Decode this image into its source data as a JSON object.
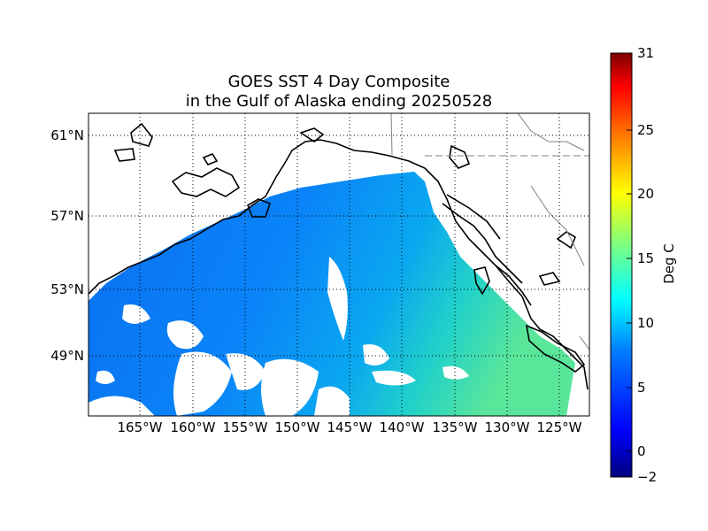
{
  "title_line1": "GOES SST 4 Day Composite",
  "title_line2": "in the Gulf of Alaska ending 20250528",
  "map": {
    "lon_labels": [
      "165°W",
      "160°W",
      "155°W",
      "150°W",
      "145°W",
      "140°W",
      "135°W",
      "130°W",
      "125°W"
    ],
    "lat_labels": [
      "61°N",
      "57°N",
      "53°N",
      "49°N"
    ]
  },
  "colorbar": {
    "label": "Deg C",
    "ticks": [
      "31",
      "25",
      "20",
      "15",
      "10",
      "5",
      "0",
      "−2"
    ],
    "colors": [
      "#00007f",
      "#0000ff",
      "#007fff",
      "#00ffff",
      "#7fff7f",
      "#ffff00",
      "#ff7f00",
      "#ff0000",
      "#7f0000"
    ]
  }
}
